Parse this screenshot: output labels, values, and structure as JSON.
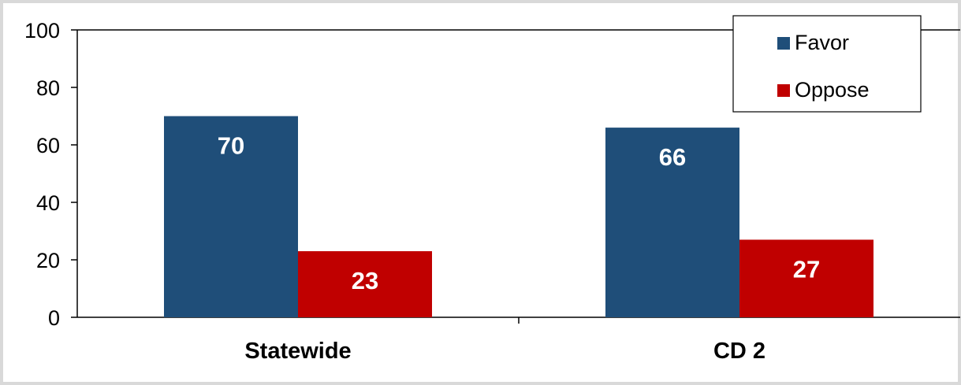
{
  "chart_data": {
    "type": "bar",
    "categories": [
      "Statewide",
      "CD 2"
    ],
    "series": [
      {
        "name": "Favor",
        "values": [
          70,
          66
        ],
        "color": "#1f4e79"
      },
      {
        "name": "Oppose",
        "values": [
          23,
          27
        ],
        "color": "#c00000"
      }
    ],
    "title": "",
    "xlabel": "",
    "ylabel": "",
    "ylim": [
      0,
      100
    ],
    "yticks": [
      0,
      20,
      40,
      60,
      80,
      100
    ],
    "grid": false,
    "legend": "top-right",
    "data_labels": true
  }
}
